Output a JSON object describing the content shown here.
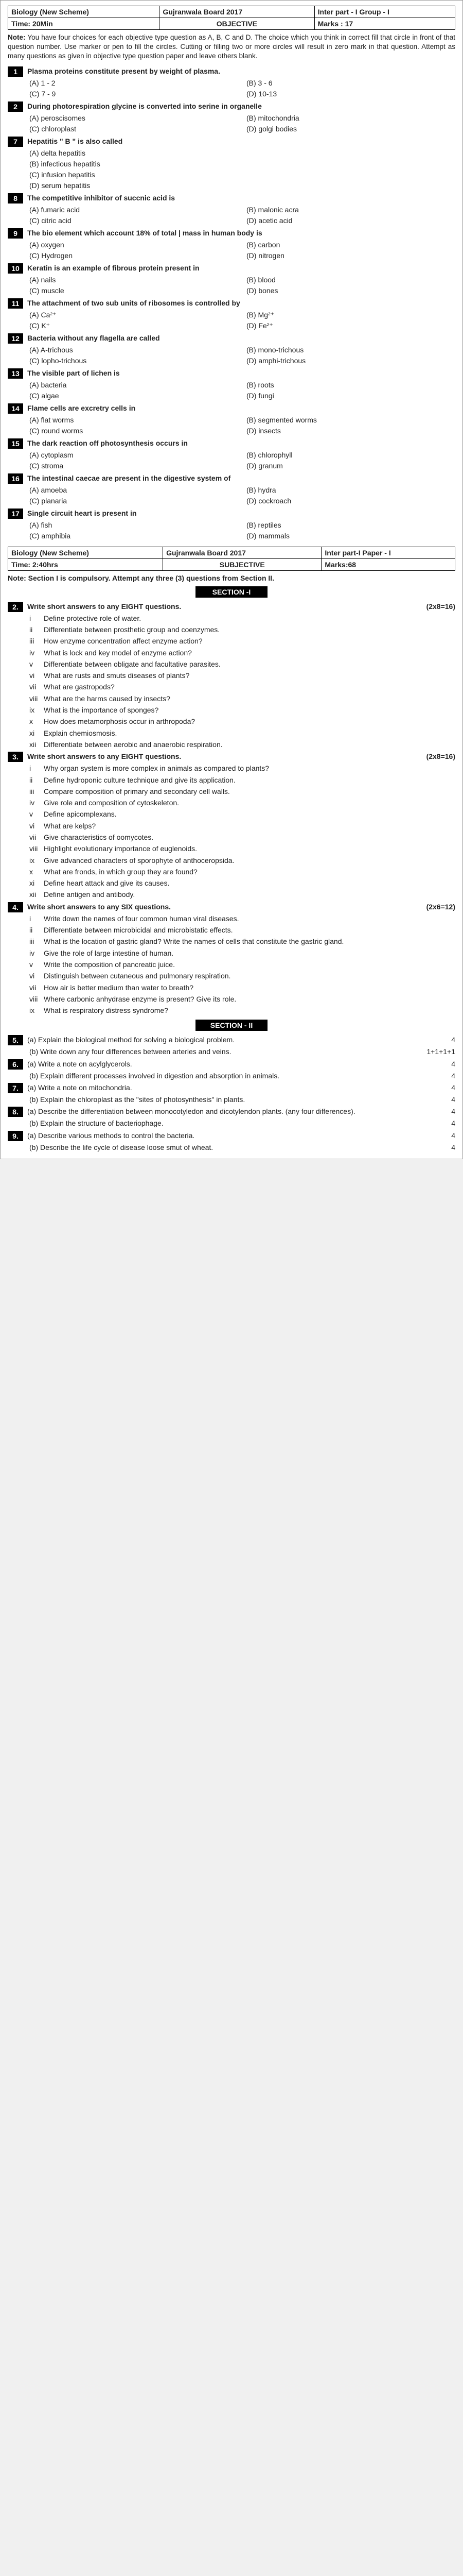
{
  "hdr1": {
    "r1c1": "Biology (New Scheme)",
    "r1c2": "Gujranwala Board 2017",
    "r1c3": "Inter part - I Group - I",
    "r2c1": "Time: 20Min",
    "r2c2": "OBJECTIVE",
    "r2c3": "Marks : 17"
  },
  "note": "You have four choices for each objective type question as A, B, C and D. The choice which you think in correct fill that circle in front of that question number. Use marker or pen to fill the circles. Cutting or filling two or more circles will result in zero mark in that question. Attempt as many questions as given in objective type question paper and leave others blank.",
  "mcq": [
    {
      "n": "1",
      "q": "Plasma proteins constitute present by weight of plasma.",
      "opts": [
        "(A)   1 - 2",
        "(B)   3 - 6",
        "(C)   7 - 9",
        "(D)   10-13"
      ],
      "cols": 2
    },
    {
      "n": "2",
      "q": "During photorespiration glycine is converted into serine in organelle",
      "opts": [
        "(A)   peroscisomes",
        "(B)   mitochondria",
        "(C)   chloroplast",
        "(D)   golgi bodies"
      ],
      "cols": 2
    },
    {
      "n": "7",
      "q": "Hepatitis \" B \" is also called",
      "opts": [
        "(A)   delta hepatitis",
        "(B)   infectious hepatitis",
        "(C)   infusion hepatitis",
        "(D)   serum hepatitis"
      ],
      "cols": 1
    },
    {
      "n": "8",
      "q": "The competitive inhibitor of succnic acid is",
      "opts": [
        "(A)   fumaric acid",
        "(B)   malonic acra",
        "(C)   citric acid",
        "(D)   acetic acid"
      ],
      "cols": 2
    },
    {
      "n": "9",
      "q": "The bio element which account 18% of total | mass in human body is",
      "opts": [
        "(A)   oxygen",
        "(B)   carbon",
        "(C)   Hydrogen",
        "(D)   nitrogen"
      ],
      "cols": 2
    },
    {
      "n": "10",
      "q": "Keratin is an example of fibrous protein present in",
      "opts": [
        "(A)   nails",
        "(B)   blood",
        "(C)   muscle",
        "(D)   bones"
      ],
      "cols": 2
    },
    {
      "n": "11",
      "q": "The attachment of two sub units of ribosomes is controlled by",
      "opts": [
        "(A)   Ca²⁺",
        "(B)   Mg²⁺",
        "(C)   K⁺",
        "(D)   Fe²⁺"
      ],
      "cols": 2
    },
    {
      "n": "12",
      "q": "Bacteria without any flagella are called",
      "opts": [
        "(A)   A-trichous",
        "(B)   mono-trichous",
        "(C)   lopho-trichous",
        "(D)   amphi-trichous"
      ],
      "cols": 2
    },
    {
      "n": "13",
      "q": "The visible part of lichen is",
      "opts": [
        "(A)   bacteria",
        "(B)   roots",
        "(C)   algae",
        "(D)   fungi"
      ],
      "cols": 2
    },
    {
      "n": "14",
      "q": "Flame cells are excretry cells in",
      "opts": [
        "(A)   flat worms",
        "(B)   segmented worms",
        "(C)   round worms",
        "(D)   insects"
      ],
      "cols": 2
    },
    {
      "n": "15",
      "q": "The dark reaction off photosynthesis occurs in",
      "opts": [
        "(A)   cytoplasm",
        "(B)   chlorophyll",
        "(C)   stroma",
        "(D)   granum"
      ],
      "cols": 2
    },
    {
      "n": "16",
      "q": "The intestinal caecae are present in the digestive system of",
      "opts": [
        "(A)   amoeba",
        "(B)   hydra",
        "(C)   planaria",
        "(D)   cockroach"
      ],
      "cols": 2
    },
    {
      "n": "17",
      "q": "Single circuit heart is present in",
      "opts": [
        "(A)   fish",
        "(B)   reptiles",
        "(C)   amphibia",
        "(D)   mammals"
      ],
      "cols": 2
    }
  ],
  "hdr2": {
    "r1c1": "Biology (New Scheme)",
    "r1c2": "Gujranwala Board 2017",
    "r1c3": "Inter part-I Paper - I",
    "r2c1": "Time: 2:40hrs",
    "r2c2": "SUBJECTIVE",
    "r2c3": "Marks:68"
  },
  "subj_note": "Note: Section I is compulsory. Attempt any three (3) questions from Section II.",
  "sec1": "SECTION -I",
  "q2": {
    "n": "2.",
    "head": "Write short answers to any EIGHT questions.",
    "marks": "(2x8=16)",
    "sub": [
      [
        "i",
        "Define protective role of water."
      ],
      [
        "ii",
        "Differentiate between prosthetic group and coenzymes."
      ],
      [
        "iii",
        "How enzyme concentration affect enzyme action?"
      ],
      [
        "iv",
        "What is lock and key model of enzyme action?"
      ],
      [
        "v",
        "Differentiate between obligate and facultative parasites."
      ],
      [
        "vi",
        "What are rusts and smuts diseases of plants?"
      ],
      [
        "vii",
        "What are gastropods?"
      ],
      [
        "viii",
        "What are the harms caused by insects?"
      ],
      [
        "ix",
        "What is the importance of sponges?"
      ],
      [
        "x",
        "How does metamorphosis occur in arthropoda?"
      ],
      [
        "xi",
        "Explain chemiosmosis."
      ],
      [
        "xii",
        "Differentiate between aerobic and anaerobic respiration."
      ]
    ]
  },
  "q3": {
    "n": "3.",
    "head": "Write short answers to any EIGHT questions.",
    "marks": "(2x8=16)",
    "sub": [
      [
        "i",
        "Why organ system is more complex in animals as compared to plants?"
      ],
      [
        "ii",
        "Define hydroponic culture technique and give its application."
      ],
      [
        "iii",
        "Compare composition of primary and secondary cell walls."
      ],
      [
        "iv",
        "Give role and composition of cytoskeleton."
      ],
      [
        "v",
        "Define apicomplexans."
      ],
      [
        "vi",
        "What are kelps?"
      ],
      [
        "vii",
        "Give characteristics of oomycotes."
      ],
      [
        "viii",
        "Highlight evolutionary importance of euglenoids."
      ],
      [
        "ix",
        "Give advanced characters of sporophyte of anthoceropsida."
      ],
      [
        "x",
        "What are fronds, in which group they are found?"
      ],
      [
        "xi",
        "Define heart attack and give its causes."
      ],
      [
        "xii",
        "Define antigen and antibody."
      ]
    ]
  },
  "q4": {
    "n": "4.",
    "head": "Write short answers to any SIX questions.",
    "marks": "(2x6=12)",
    "sub": [
      [
        "i",
        "Write down the names of four common human viral diseases."
      ],
      [
        "ii",
        "Differentiate between microbicidal and microbistatic effects."
      ],
      [
        "iii",
        "What is the location of gastric gland? Write the names of cells that constitute the gastric gland."
      ],
      [
        "iv",
        "Give the role of large intestine of human."
      ],
      [
        "v",
        "Write the composition of pancreatic juice."
      ],
      [
        "vi",
        "Distinguish between cutaneous and pulmonary respiration."
      ],
      [
        "vii",
        "How air is better medium than water to breath?"
      ],
      [
        "viii",
        "Where carbonic anhydrase enzyme is present? Give its role."
      ],
      [
        "ix",
        "What is respiratory distress syndrome?"
      ]
    ]
  },
  "sec2": "SECTION - II",
  "s2": [
    {
      "n": "5.",
      "parts": [
        [
          "(a) Explain the biological method for solving a biological problem.",
          "4"
        ],
        [
          "(b) Write down any four differences between arteries and veins.",
          "1+1+1+1"
        ]
      ]
    },
    {
      "n": "6.",
      "parts": [
        [
          "(a) Write a note on acylglycerols.",
          "4"
        ],
        [
          "(b) Explain different processes involved in digestion and absorption in animals.",
          "4"
        ]
      ]
    },
    {
      "n": "7.",
      "parts": [
        [
          "(a) Write a note on mitochondria.",
          "4"
        ],
        [
          "(b) Explain the chloroplast as the \"sites of photosynthesis\" in plants.",
          "4"
        ]
      ]
    },
    {
      "n": "8.",
      "parts": [
        [
          "(a) Describe the differentiation between monocotyledon and dicotylendon plants. (any four differences).",
          "4"
        ],
        [
          "(b) Explain the structure of bacteriophage.",
          "4"
        ]
      ]
    },
    {
      "n": "9.",
      "parts": [
        [
          "(a) Describe various methods to control the bacteria.",
          "4"
        ],
        [
          "(b) Describe the life cycle of disease loose smut of wheat.",
          "4"
        ]
      ]
    }
  ]
}
